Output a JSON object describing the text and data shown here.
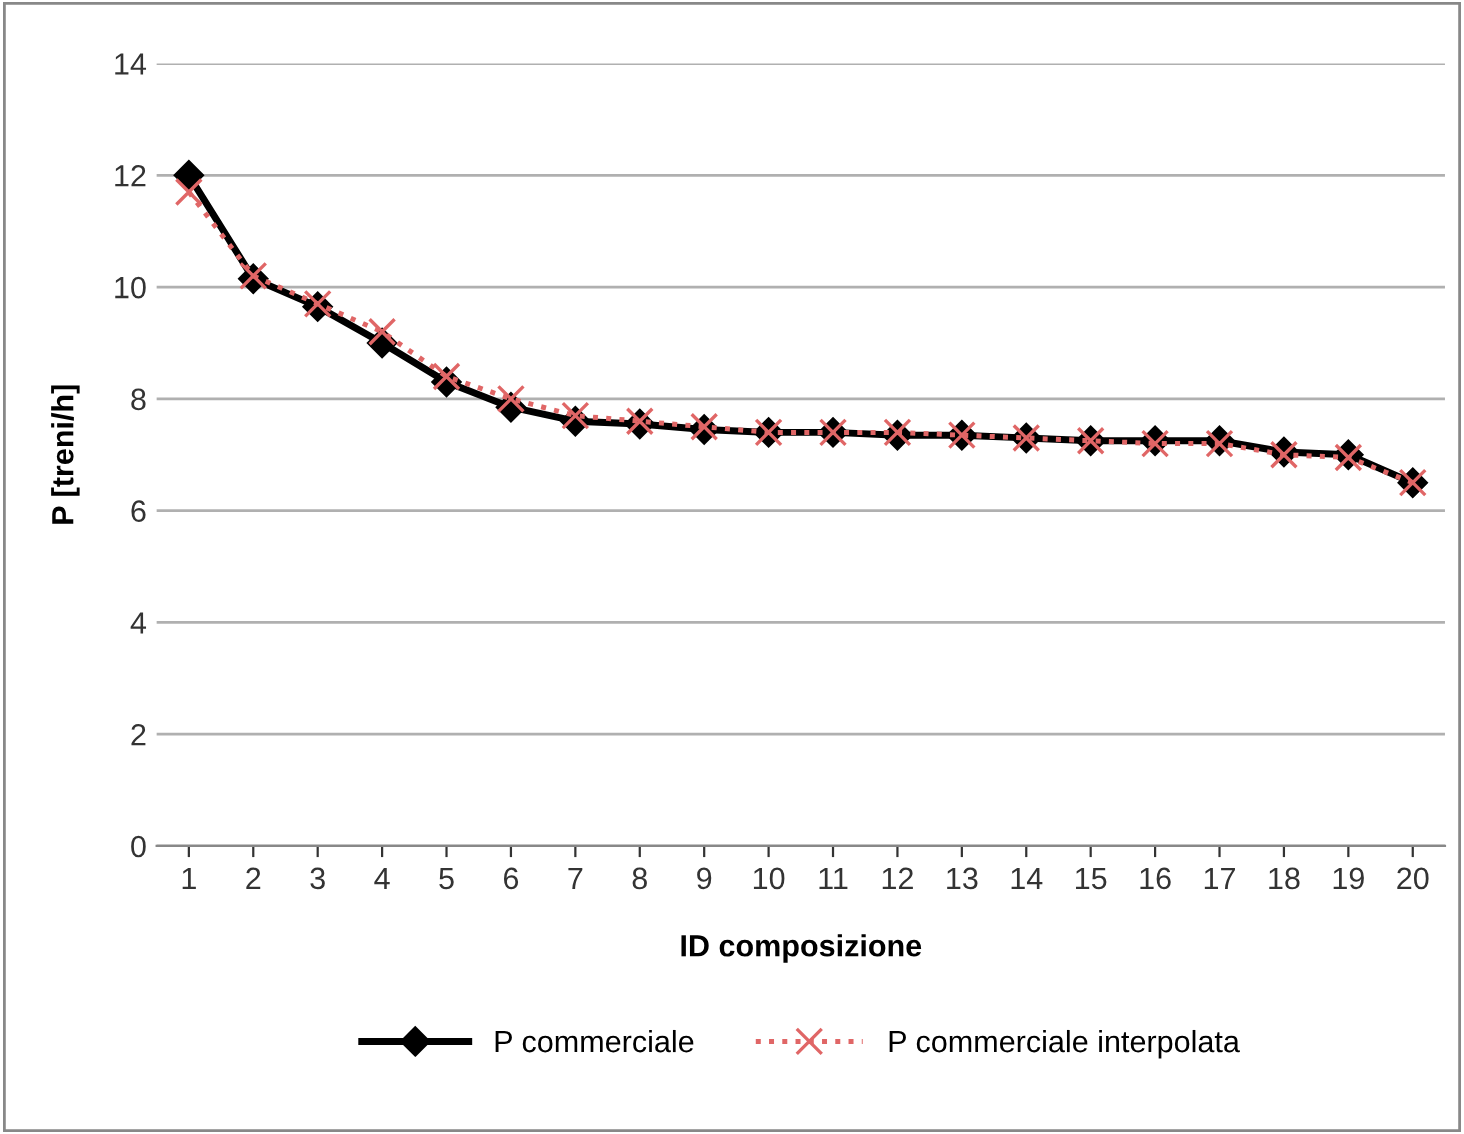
{
  "chart_data": {
    "type": "line",
    "xlabel": "ID composizione",
    "ylabel": "P [treni/h]",
    "categories": [
      "1",
      "2",
      "3",
      "4",
      "5",
      "6",
      "7",
      "8",
      "9",
      "10",
      "11",
      "12",
      "13",
      "14",
      "15",
      "16",
      "17",
      "18",
      "19",
      "20"
    ],
    "series": [
      {
        "name": "P commerciale",
        "color": "#000000",
        "marker": "diamond",
        "line_style": "solid",
        "values": [
          12.0,
          10.15,
          9.65,
          9.0,
          8.3,
          7.85,
          7.6,
          7.55,
          7.45,
          7.4,
          7.4,
          7.35,
          7.35,
          7.3,
          7.25,
          7.25,
          7.25,
          7.05,
          7.0,
          6.5
        ]
      },
      {
        "name": "P commerciale interpolata",
        "color": "#e06666",
        "marker": "cross",
        "line_style": "dotted",
        "values": [
          11.7,
          10.2,
          9.7,
          9.2,
          8.4,
          8.0,
          7.7,
          7.6,
          7.5,
          7.4,
          7.4,
          7.4,
          7.35,
          7.3,
          7.25,
          7.2,
          7.2,
          7.0,
          6.95,
          6.5
        ]
      }
    ],
    "ylim": [
      0,
      14
    ],
    "yticks": [
      0,
      2,
      4,
      6,
      8,
      10,
      12,
      14
    ],
    "grid": "y",
    "legend": "bottom"
  }
}
